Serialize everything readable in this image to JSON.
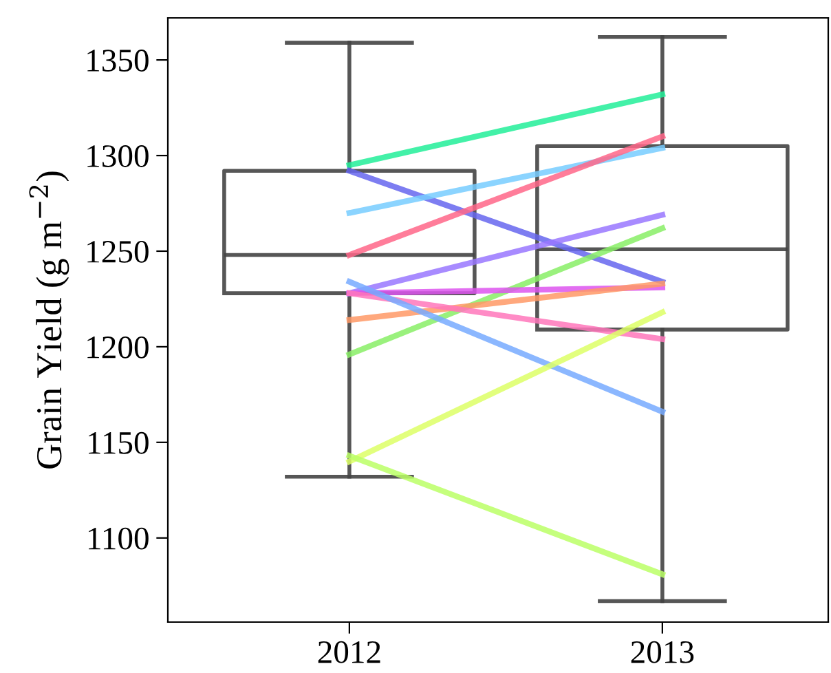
{
  "chart_data": {
    "type": "box",
    "ylabel": "Grain Yield (g m$^{−2}$)",
    "categories": [
      "2012",
      "2013"
    ],
    "boxes": [
      {
        "low": 1132,
        "q1": 1228,
        "median": 1248,
        "q3": 1292,
        "high": 1359
      },
      {
        "low": 1067,
        "q1": 1209,
        "median": 1251,
        "q3": 1305,
        "high": 1362
      }
    ],
    "color": "#444444",
    "series": [
      {
        "type": "line",
        "color": "#22ee99",
        "values": [
          1295,
          1332
        ]
      },
      {
        "type": "line",
        "color": "#6666ee",
        "values": [
          1292,
          1234
        ]
      },
      {
        "type": "line",
        "color": "#77ccff",
        "values": [
          1270,
          1304
        ]
      },
      {
        "type": "line",
        "color": "#ff6688",
        "values": [
          1248,
          1310
        ]
      },
      {
        "type": "line",
        "color": "#9977ff",
        "values": [
          1228,
          1269
        ]
      },
      {
        "type": "line",
        "color": "#88ee66",
        "values": [
          1196,
          1262
        ]
      },
      {
        "type": "line",
        "color": "#dd55ee",
        "values": [
          1228,
          1231
        ]
      },
      {
        "type": "line",
        "color": "#ff9966",
        "values": [
          1214,
          1233
        ]
      },
      {
        "type": "line",
        "color": "#ff77bb",
        "values": [
          1228,
          1204
        ]
      },
      {
        "type": "line",
        "color": "#77aaff",
        "values": [
          1234,
          1166
        ]
      },
      {
        "type": "line",
        "color": "#ddff66",
        "values": [
          1140,
          1218
        ]
      },
      {
        "type": "line",
        "color": "#bbff66",
        "values": [
          1143,
          1081
        ]
      }
    ],
    "ylim": [
      1056,
      1372
    ],
    "yticks": [
      1100,
      1150,
      1200,
      1250,
      1300,
      1350
    ],
    "grid": false,
    "legend": false,
    "marker": "none",
    "line_style": "solid"
  }
}
